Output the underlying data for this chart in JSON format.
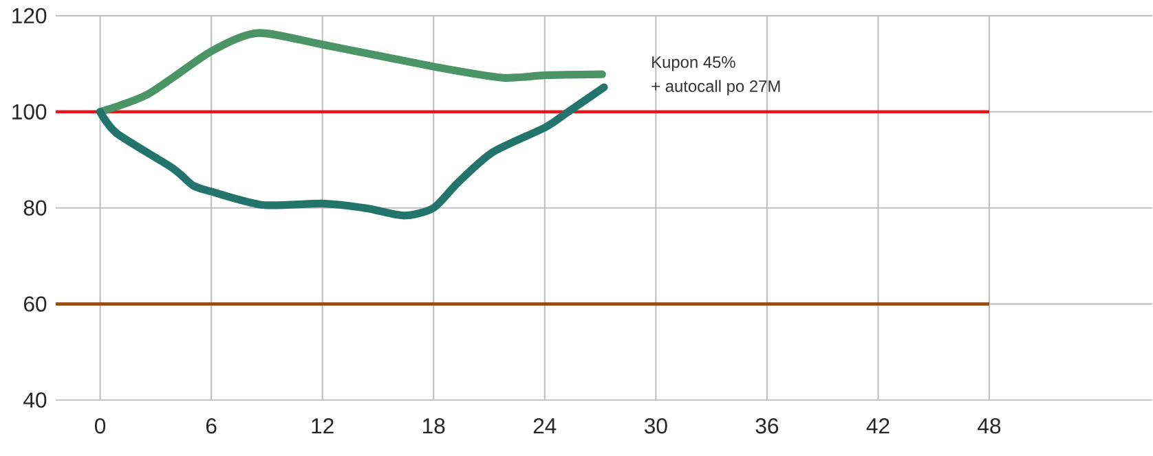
{
  "chart_data": {
    "type": "line",
    "series": [
      {
        "color": "#4a9465",
        "x": [
          0,
          2.6,
          6,
          8.5,
          12,
          18,
          21.7,
          24,
          27.1
        ],
        "values": [
          100,
          103.7,
          112.6,
          116.4,
          114.0,
          109.4,
          107.1,
          107.6,
          107.8
        ]
      },
      {
        "color": "#23756c",
        "x": [
          0,
          0.9,
          3.9,
          5.0,
          6,
          8.8,
          12,
          14.4,
          16.4,
          18,
          19.3,
          21.2,
          24,
          25.2,
          27.2
        ],
        "values": [
          100,
          95.5,
          88.3,
          84.7,
          83.4,
          80.6,
          80.9,
          79.9,
          78.4,
          80.0,
          85.2,
          91.6,
          96.7,
          99.8,
          105.1
        ]
      }
    ],
    "xlim": [
      -2.4,
      56.8
    ],
    "xticks": [
      0,
      6,
      12,
      18,
      24,
      30,
      36,
      42,
      48
    ],
    "ylim": [
      40,
      120
    ],
    "yticks": [
      40,
      60,
      80,
      100,
      120
    ],
    "grid": true,
    "ref_lines": [
      {
        "axis": "y",
        "value": 100,
        "color": "#e8141b"
      },
      {
        "axis": "y",
        "value": 60,
        "color": "#9a4b0f"
      }
    ],
    "annotations": [
      "Kupon 45%",
      "+ autocall po 27M"
    ]
  }
}
